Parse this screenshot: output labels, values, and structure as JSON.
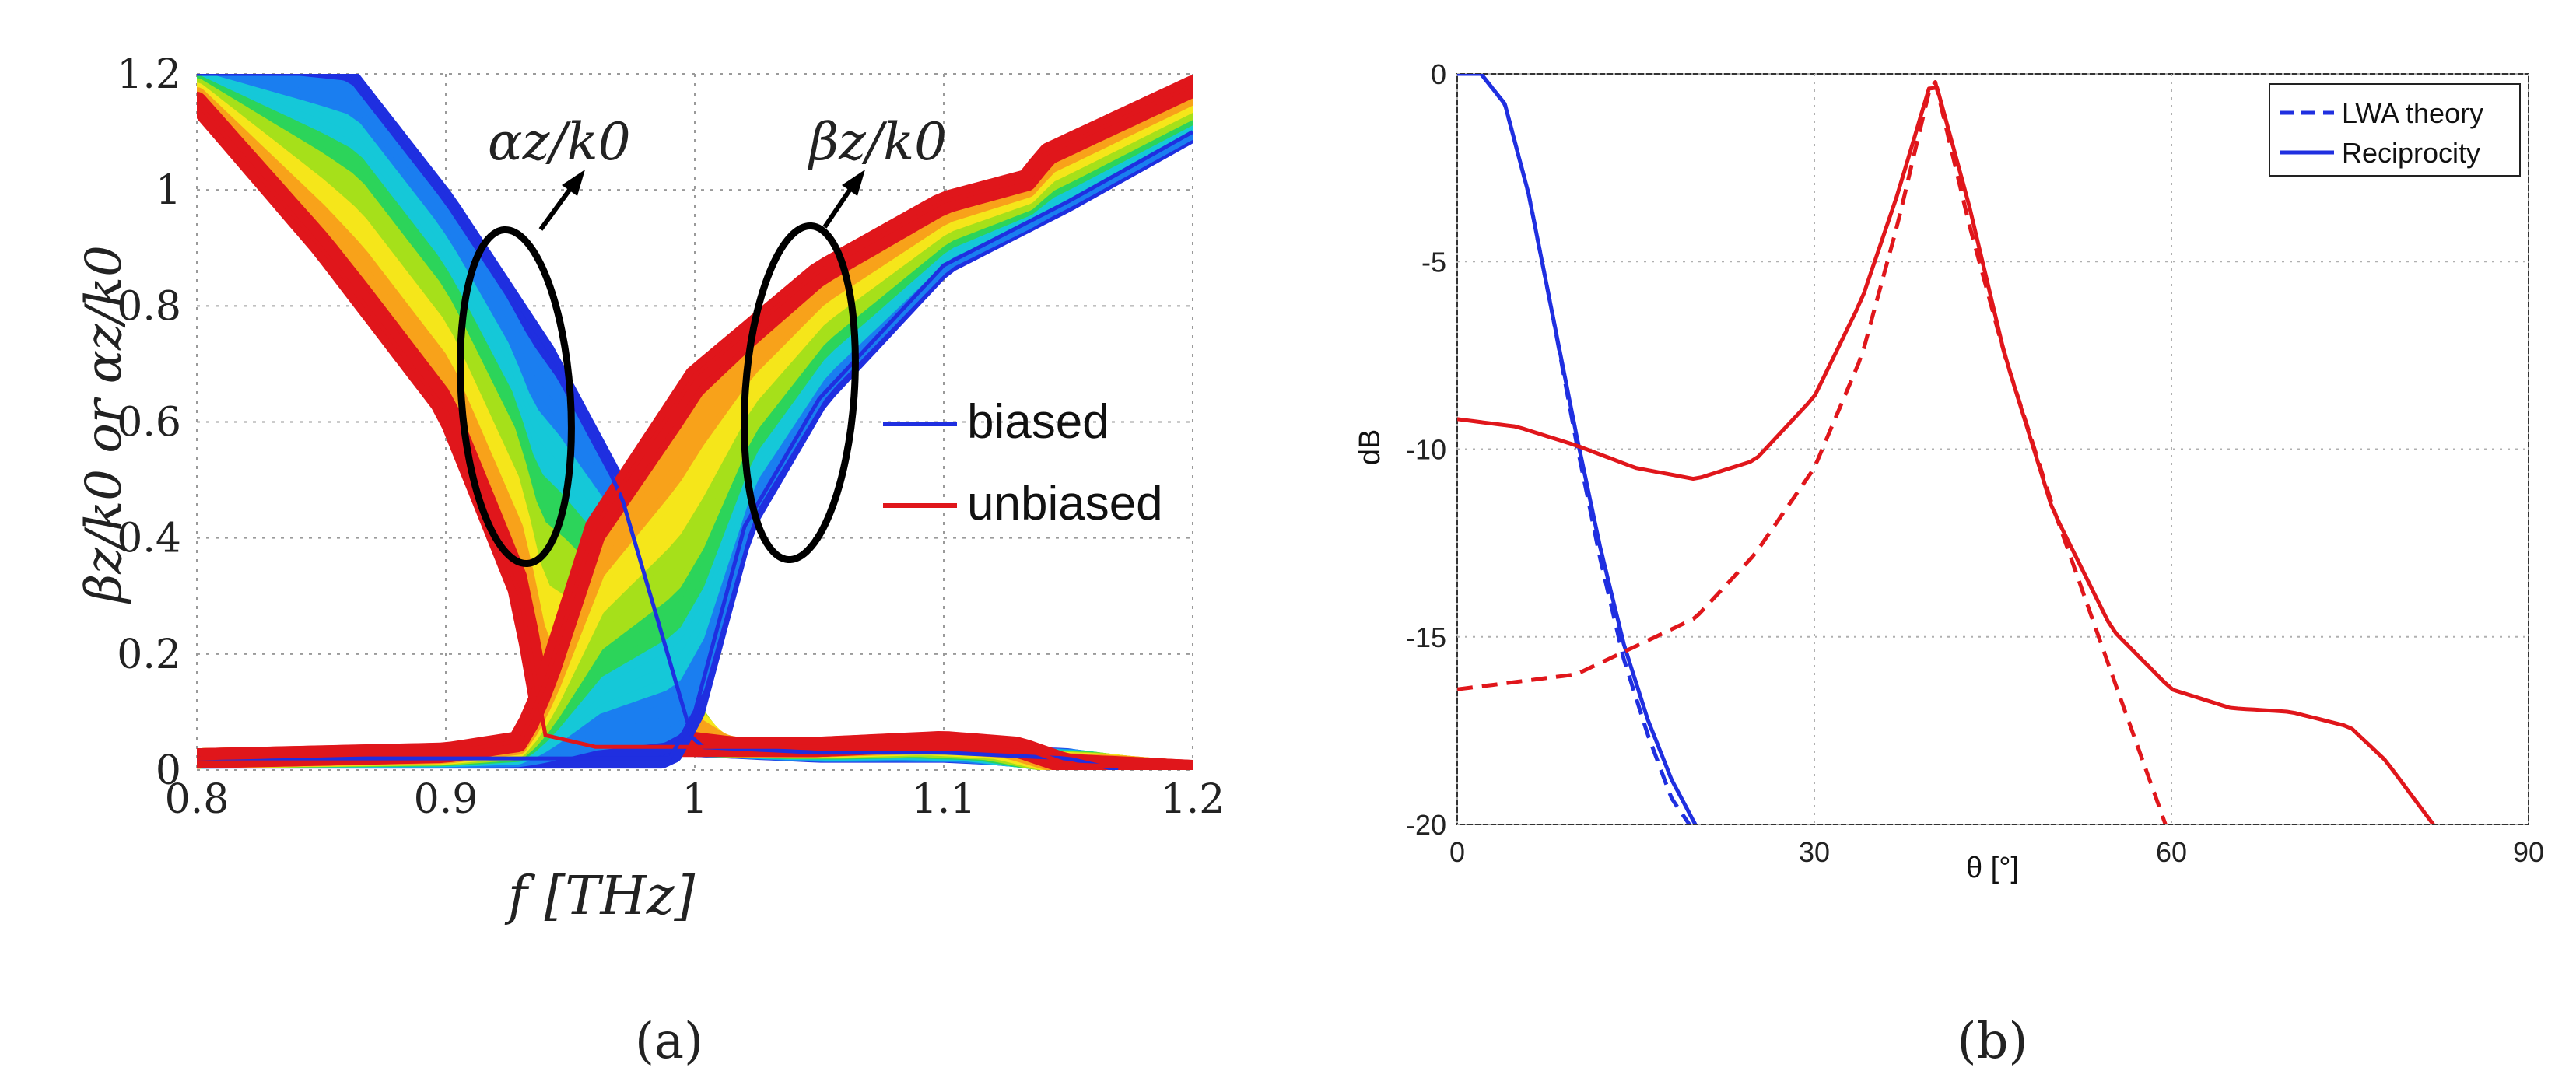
{
  "chart_data": [
    {
      "id": "a",
      "type": "line",
      "panel_label": "(a)",
      "xlabel": "f [THz]",
      "ylabel": "βz/k0 or αz/k0",
      "xlim": [
        0.8,
        1.2
      ],
      "ylim": [
        0,
        1.2
      ],
      "xticks": [
        "0.8",
        "0.9",
        "1",
        "1.1",
        "1.2"
      ],
      "yticks": [
        "0",
        "0.2",
        "0.4",
        "0.6",
        "0.8",
        "1",
        "1.2"
      ],
      "grid": true,
      "annotations": [
        "αz/k0",
        "βz/k0"
      ],
      "legend": {
        "placement": "center-right",
        "entries": [
          {
            "name": "biased",
            "color": "#1f2fe0"
          },
          {
            "name": "unbiased",
            "color": "#e0161b"
          }
        ]
      },
      "series": [
        {
          "name": "alpha biased",
          "color": "#1f2fe0",
          "x": [
            0.8,
            0.86,
            0.9,
            0.94,
            0.97,
            1.0,
            1.05,
            1.1,
            1.15,
            1.17
          ],
          "y": [
            1.2,
            1.2,
            0.98,
            0.72,
            0.48,
            0.04,
            0.03,
            0.03,
            0.02,
            0.0
          ]
        },
        {
          "name": "alpha unbiased",
          "color": "#e0161b",
          "x": [
            0.8,
            0.85,
            0.9,
            0.93,
            0.94,
            0.96,
            1.0,
            1.05,
            1.1,
            1.13,
            1.15,
            1.2
          ],
          "y": [
            1.15,
            0.9,
            0.62,
            0.3,
            0.06,
            0.04,
            0.04,
            0.04,
            0.05,
            0.04,
            0.01,
            0.0
          ]
        },
        {
          "name": "beta biased",
          "color": "#1f2fe0",
          "x": [
            0.8,
            0.9,
            0.95,
            0.99,
            1.0,
            1.02,
            1.05,
            1.1,
            1.15,
            1.2
          ],
          "y": [
            0.02,
            0.02,
            0.02,
            0.02,
            0.1,
            0.42,
            0.64,
            0.87,
            0.98,
            1.1
          ]
        },
        {
          "name": "beta unbiased",
          "color": "#e0161b",
          "x": [
            0.8,
            0.9,
            0.93,
            0.94,
            0.96,
            1.0,
            1.05,
            1.1,
            1.135,
            1.14,
            1.2
          ],
          "y": [
            0.02,
            0.03,
            0.05,
            0.15,
            0.42,
            0.68,
            0.86,
            0.98,
            1.02,
            1.06,
            1.18
          ]
        }
      ]
    },
    {
      "id": "b",
      "type": "line",
      "panel_label": "(b)",
      "xlabel": "θ [°]",
      "ylabel": "dB",
      "xlim": [
        0,
        90
      ],
      "ylim": [
        -20,
        0
      ],
      "xticks": [
        "0",
        "30",
        "60",
        "90"
      ],
      "yticks": [
        "-20",
        "-15",
        "-10",
        "-5",
        "0"
      ],
      "grid": true,
      "legend": {
        "placement": "top-right",
        "entries": [
          {
            "name": "LWA theory",
            "style": "dashed"
          },
          {
            "name": "Reciprocity",
            "style": "solid"
          }
        ]
      },
      "series": [
        {
          "name": "blue LWA theory",
          "color": "#1f2fe0",
          "style": "dashed",
          "x": [
            0,
            2,
            4,
            6,
            8,
            10,
            12,
            14,
            16,
            18,
            19.5
          ],
          "y": [
            0,
            0,
            -0.8,
            -3.2,
            -6.4,
            -9.8,
            -12.9,
            -15.6,
            -17.6,
            -19.3,
            -20
          ]
        },
        {
          "name": "blue Reciprocity",
          "color": "#1f2fe0",
          "style": "solid",
          "x": [
            0,
            2,
            4,
            6,
            8,
            10,
            12,
            14,
            16,
            18,
            20
          ],
          "y": [
            0,
            0,
            -0.8,
            -3.2,
            -6.4,
            -9.6,
            -12.6,
            -15.2,
            -17.2,
            -18.8,
            -20
          ]
        },
        {
          "name": "red LWA theory",
          "color": "#e0161b",
          "style": "dashed",
          "x": [
            0,
            10,
            20,
            25,
            30,
            34,
            37,
            40,
            43,
            46,
            50,
            55,
            59.5
          ],
          "y": [
            -16.4,
            -16.0,
            -14.5,
            -12.8,
            -10.5,
            -7.5,
            -4.0,
            0,
            -4.0,
            -7.5,
            -11.5,
            -16.0,
            -20
          ]
        },
        {
          "name": "red Reciprocity",
          "color": "#e0161b",
          "style": "solid",
          "x": [
            0,
            5,
            10,
            15,
            20,
            25,
            30,
            34,
            37,
            40,
            43,
            46,
            50,
            55,
            60,
            65,
            70,
            75,
            78,
            82
          ],
          "y": [
            -9.2,
            -9.4,
            -9.9,
            -10.5,
            -10.8,
            -10.3,
            -8.6,
            -6.0,
            -3.2,
            0,
            -3.5,
            -7.5,
            -11.6,
            -14.8,
            -16.4,
            -16.9,
            -17.0,
            -17.4,
            -18.3,
            -20
          ]
        }
      ]
    }
  ]
}
